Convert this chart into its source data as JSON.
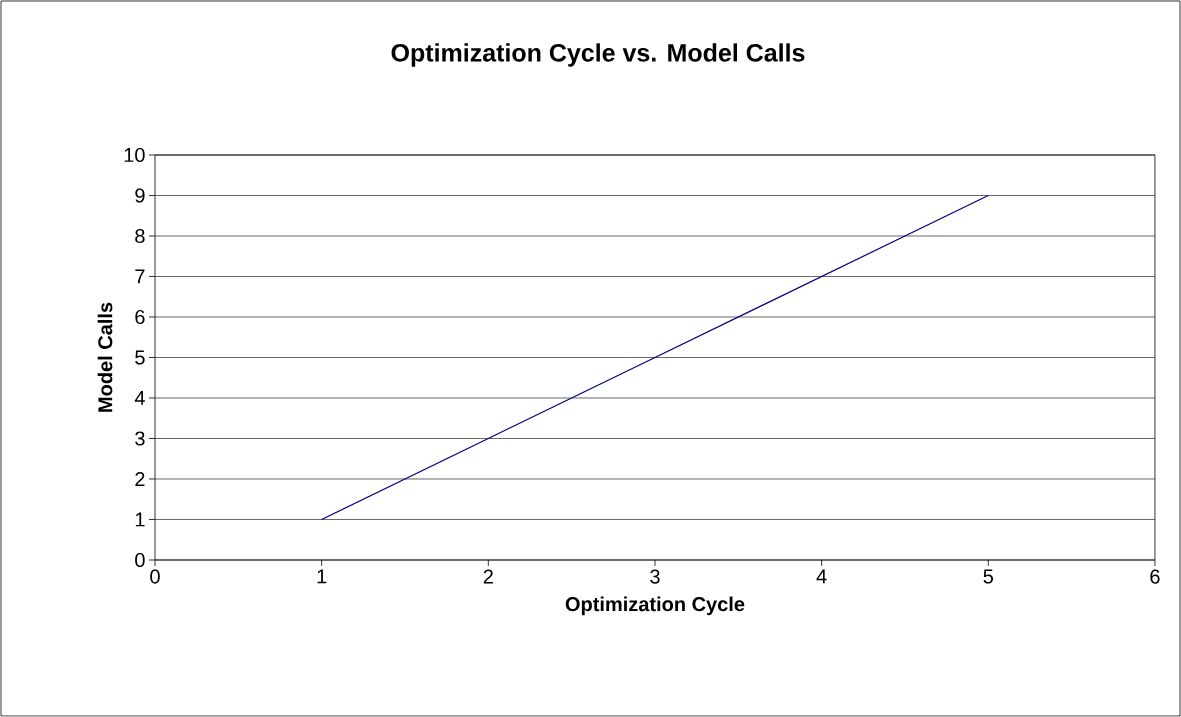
{
  "chart_data": {
    "type": "line",
    "title": "Optimization Cycle vs. Model Calls",
    "xlabel": "Optimization Cycle",
    "ylabel": "Model Calls",
    "x": [
      1,
      2,
      3,
      4,
      5
    ],
    "series": [
      {
        "color": "#000080",
        "values": [
          1,
          3,
          5,
          7,
          9
        ]
      }
    ],
    "xlim": [
      0,
      6
    ],
    "xticks": [
      0,
      1,
      2,
      3,
      4,
      5,
      6
    ],
    "ylim": [
      0,
      10
    ],
    "yticks": [
      0,
      1,
      2,
      3,
      4,
      5,
      6,
      7,
      8,
      9,
      10
    ],
    "grid": "y",
    "marker": "none",
    "line_style": "solid"
  }
}
